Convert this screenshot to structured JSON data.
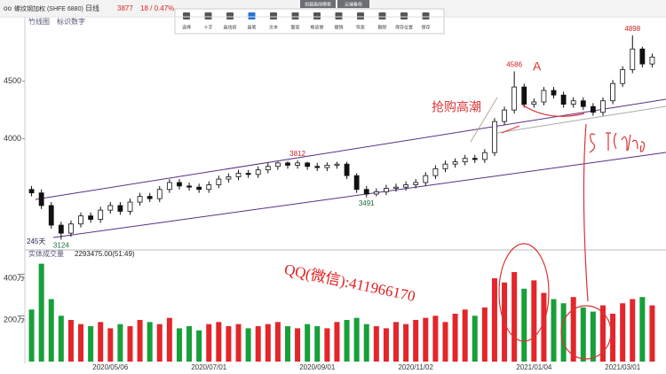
{
  "header": {
    "title": "螺纹钢加权 (SHFE 6880)",
    "period": "日线",
    "price": "3877",
    "change": "18 / 0.47%",
    "cloud_left": "加载画线模板",
    "cloud_right": "云端备份"
  },
  "toolbar": {
    "items": [
      "选择",
      "十字",
      "画线段",
      "画笔",
      "文本",
      "图章",
      "橡皮擦",
      "撤销",
      "恢复",
      "删除",
      "保存位置",
      "保存"
    ]
  },
  "panel": {
    "mode": "竹线图",
    "marks": "标识数字",
    "days": "245天",
    "volume_title": "实体成交量",
    "volume_value": "2293475.00(51:49)"
  },
  "notes": {
    "handwriting": "抢购高潮",
    "wave": "A",
    "watermark": "QQ(微信):411966170"
  },
  "chart_data": {
    "type": "candlestick",
    "candle_color": "#111111",
    "up_color": "#e3262b",
    "down_color": "#17a03a",
    "channel_color": "#5b2d86",
    "categories": [
      null,
      null,
      null,
      null,
      null,
      null,
      null,
      null,
      "2020/05/06",
      null,
      null,
      null,
      null,
      null,
      null,
      null,
      null,
      null,
      "2020/07/01",
      null,
      null,
      null,
      null,
      null,
      null,
      null,
      null,
      null,
      null,
      "2020/09/01",
      null,
      null,
      null,
      null,
      null,
      null,
      null,
      null,
      null,
      "2020/11/02",
      null,
      null,
      null,
      null,
      null,
      null,
      null,
      null,
      null,
      null,
      null,
      "2021/01/04",
      null,
      null,
      null,
      null,
      null,
      null,
      null,
      null,
      "2021/03/01",
      null,
      null,
      null
    ],
    "open": [
      3560,
      3530,
      3420,
      3250,
      3180,
      3260,
      3330,
      3300,
      3380,
      3420,
      3370,
      3450,
      3500,
      3480,
      3560,
      3620,
      3590,
      3580,
      3560,
      3600,
      3650,
      3670,
      3700,
      3690,
      3730,
      3760,
      3790,
      3770,
      3790,
      3760,
      3750,
      3770,
      3780,
      3680,
      3560,
      3520,
      3540,
      3570,
      3580,
      3600,
      3620,
      3680,
      3740,
      3780,
      3800,
      3830,
      3820,
      3880,
      4150,
      4250,
      4450,
      4300,
      4320,
      4420,
      4380,
      4300,
      4330,
      4280,
      4230,
      4330,
      4480,
      4600,
      4780,
      4650
    ],
    "high": [
      3590,
      3560,
      3450,
      3280,
      3290,
      3360,
      3360,
      3410,
      3450,
      3450,
      3480,
      3530,
      3530,
      3590,
      3650,
      3650,
      3620,
      3610,
      3630,
      3680,
      3700,
      3730,
      3730,
      3760,
      3790,
      3800,
      3805,
      3812,
      3800,
      3790,
      3795,
      3800,
      3800,
      3700,
      3590,
      3570,
      3600,
      3610,
      3630,
      3650,
      3710,
      3770,
      3810,
      3830,
      3860,
      3860,
      3910,
      4180,
      4280,
      4586,
      4480,
      4350,
      4450,
      4450,
      4410,
      4360,
      4360,
      4310,
      4360,
      4510,
      4630,
      4898,
      4800,
      4740
    ],
    "low": [
      3500,
      3390,
      3220,
      3124,
      3150,
      3230,
      3270,
      3270,
      3350,
      3340,
      3340,
      3420,
      3450,
      3450,
      3530,
      3560,
      3550,
      3530,
      3530,
      3570,
      3620,
      3640,
      3660,
      3660,
      3700,
      3730,
      3740,
      3740,
      3730,
      3720,
      3720,
      3740,
      3650,
      3530,
      3491,
      3500,
      3510,
      3540,
      3550,
      3570,
      3590,
      3650,
      3710,
      3750,
      3770,
      3790,
      3790,
      3850,
      4120,
      4220,
      4270,
      4270,
      4290,
      4350,
      4270,
      4270,
      4250,
      4200,
      4200,
      4300,
      4450,
      4570,
      4620,
      4620
    ],
    "close": [
      3530,
      3420,
      3250,
      3180,
      3260,
      3330,
      3300,
      3380,
      3420,
      3370,
      3450,
      3500,
      3480,
      3560,
      3620,
      3590,
      3580,
      3560,
      3600,
      3650,
      3670,
      3700,
      3690,
      3730,
      3760,
      3790,
      3770,
      3790,
      3760,
      3750,
      3770,
      3780,
      3680,
      3560,
      3520,
      3540,
      3570,
      3580,
      3600,
      3620,
      3680,
      3740,
      3780,
      3800,
      3830,
      3820,
      3880,
      4150,
      4250,
      4450,
      4300,
      4320,
      4420,
      4380,
      4300,
      4330,
      4280,
      4230,
      4330,
      4480,
      4600,
      4780,
      4650,
      4710
    ],
    "ylim": [
      3050,
      5090
    ],
    "yticks": [
      4000,
      4500
    ],
    "volume": [
      250,
      470,
      300,
      220,
      200,
      180,
      170,
      190,
      160,
      180,
      170,
      200,
      190,
      180,
      210,
      160,
      170,
      150,
      180,
      190,
      170,
      180,
      160,
      170,
      180,
      190,
      170,
      160,
      180,
      170,
      160,
      190,
      200,
      210,
      180,
      170,
      160,
      190,
      180,
      200,
      210,
      220,
      190,
      230,
      250,
      220,
      260,
      400,
      380,
      430,
      350,
      390,
      330,
      300,
      280,
      310,
      260,
      240,
      270,
      230,
      280,
      300,
      310,
      270
    ],
    "volume_ylim": [
      0,
      515
    ],
    "volume_yticks": [
      {
        "value": 200,
        "label": "200万"
      },
      {
        "value": 400,
        "label": "400万"
      }
    ]
  }
}
